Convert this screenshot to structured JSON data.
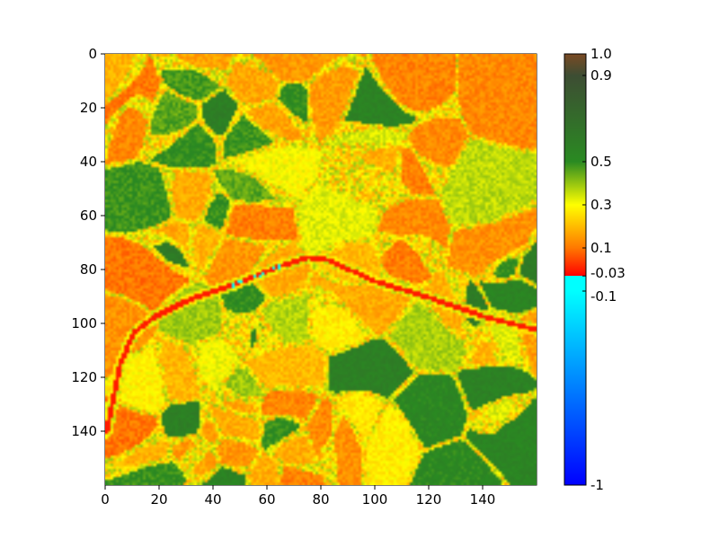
{
  "chart_data": {
    "type": "heatmap",
    "title": "",
    "xlabel": "",
    "ylabel": "",
    "grid": false,
    "xlim": [
      0,
      160
    ],
    "ylim": [
      160,
      0
    ],
    "xticks": [
      0,
      20,
      40,
      60,
      80,
      100,
      120,
      140
    ],
    "yticks": [
      0,
      20,
      40,
      60,
      80,
      100,
      120,
      140
    ],
    "xtick_labels": [
      "0",
      "20",
      "40",
      "60",
      "80",
      "100",
      "120",
      "140"
    ],
    "ytick_labels": [
      "0",
      "20",
      "40",
      "60",
      "80",
      "100",
      "120",
      "140"
    ],
    "grid_size": [
      160,
      160
    ],
    "value_range": [
      -1,
      1
    ],
    "colorbar": {
      "range": [
        -1,
        1.0
      ],
      "ticks": [
        1.0,
        0.9,
        0.5,
        0.3,
        0.1,
        -0.03,
        -0.1,
        -1
      ],
      "tick_labels": [
        "1.0",
        "0.9",
        "0.5",
        "0.3",
        "0.1",
        "-0.03",
        "-0.1",
        "-1"
      ],
      "stops": [
        {
          "value": -1,
          "color": "#0000ff"
        },
        {
          "value": -0.6,
          "color": "#0070ff"
        },
        {
          "value": -0.1,
          "color": "#00ffff"
        },
        {
          "value": -0.03,
          "color": "#00ffff"
        },
        {
          "value": -0.0299,
          "color": "#ff0000"
        },
        {
          "value": 0.1,
          "color": "#ff7800"
        },
        {
          "value": 0.3,
          "color": "#ffff00"
        },
        {
          "value": 0.5,
          "color": "#2a8a22"
        },
        {
          "value": 0.9,
          "color": "#3d4d33"
        },
        {
          "value": 1.0,
          "color": "#7a4a24"
        }
      ]
    },
    "features": {
      "river_path": [
        [
          0,
          140
        ],
        [
          5,
          115
        ],
        [
          10,
          103
        ],
        [
          18,
          97
        ],
        [
          30,
          91
        ],
        [
          50,
          84
        ],
        [
          65,
          78
        ],
        [
          75,
          75
        ],
        [
          82,
          76
        ],
        [
          100,
          84
        ],
        [
          120,
          90
        ],
        [
          140,
          97
        ],
        [
          160,
          102
        ]
      ],
      "typical_value_range": {
        "field_orange": [
          0.1,
          0.2
        ],
        "field_green": [
          0.45,
          0.6
        ],
        "mixed": [
          0.25,
          0.4
        ],
        "river": [
          -0.05,
          0.05
        ]
      }
    }
  }
}
